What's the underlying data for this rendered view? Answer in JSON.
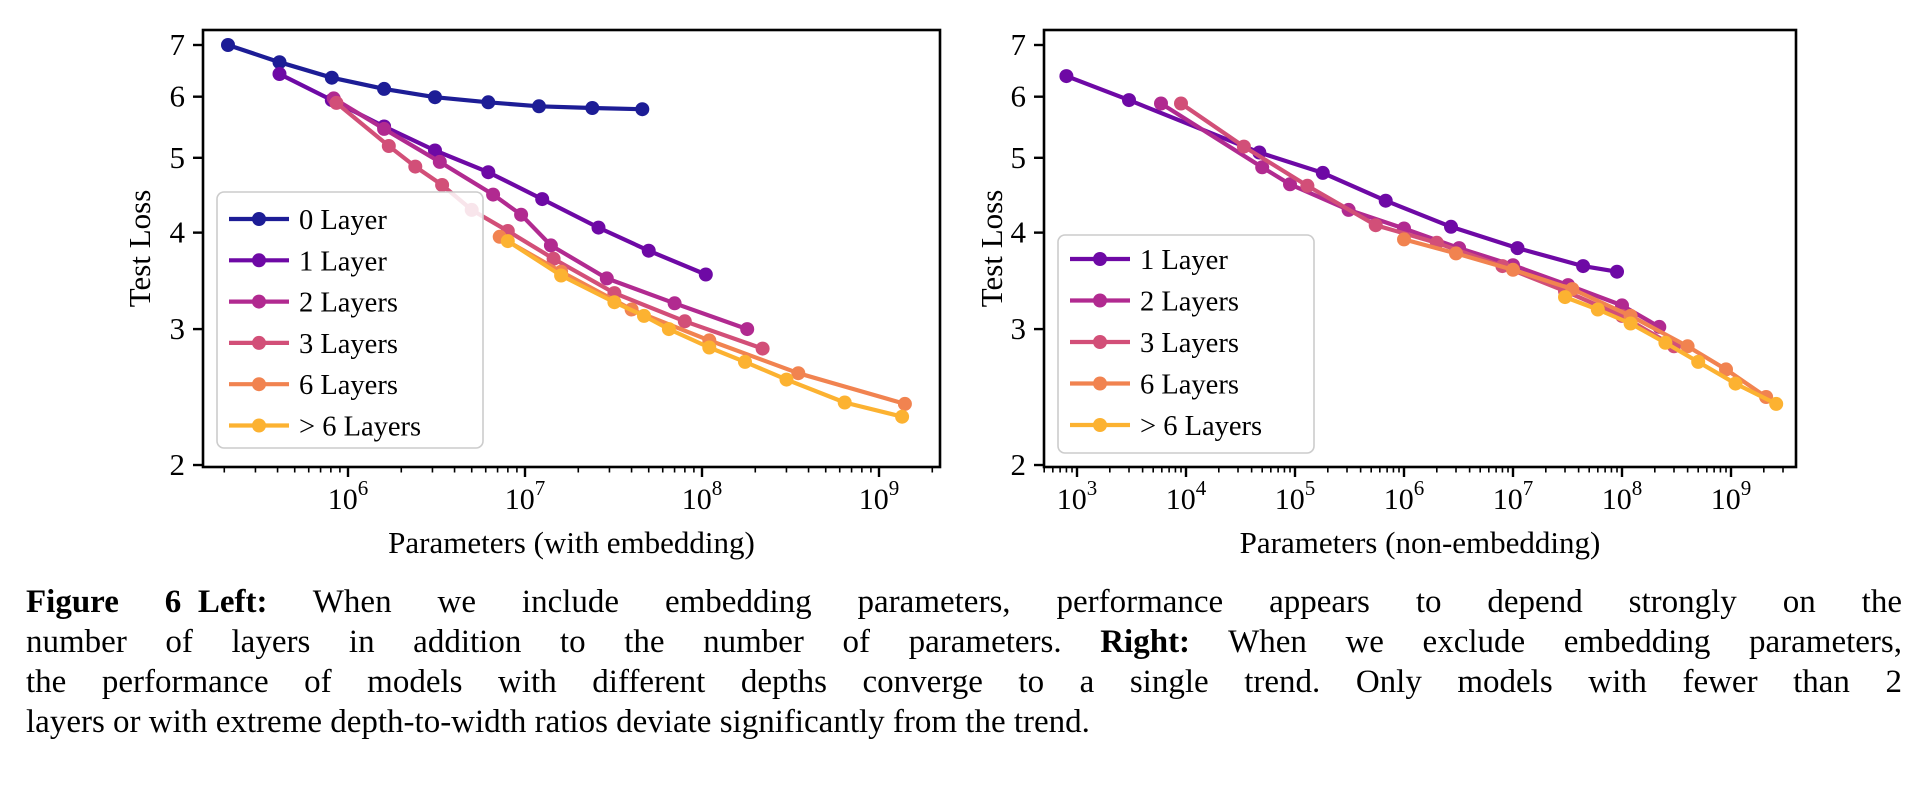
{
  "figure": {
    "caption_lines": [
      [
        {
          "t": "Figure 6",
          "b": true
        },
        {
          "t": " ",
          "b": false
        },
        {
          "t": "Left:",
          "b": true
        },
        {
          "t": " When we include embedding parameters, performance appears to depend strongly on the",
          "b": false
        }
      ],
      [
        {
          "t": "number of layers in addition to the number of parameters. ",
          "b": false
        },
        {
          "t": "Right:",
          "b": true
        },
        {
          "t": " When we exclude embedding parameters,",
          "b": false
        }
      ],
      [
        {
          "t": "the performance of models with different depths converge to a single trend. Only models with fewer than 2",
          "b": false
        }
      ],
      [
        {
          "t": "layers or with extreme depth-to-width ratios deviate significantly from the trend.",
          "b": false
        }
      ]
    ]
  },
  "chart_data": [
    {
      "type": "line",
      "panel": "left",
      "xlabel": "Parameters (with embedding)",
      "ylabel": "Test Loss",
      "xscale": "log",
      "yscale": "log",
      "xlim": [
        150000.0,
        2200000000.0
      ],
      "ylim": [
        2,
        7.3
      ],
      "xticks_exponents": [
        6,
        7,
        8,
        9
      ],
      "yticks": [
        7,
        6,
        5,
        4,
        3,
        2
      ],
      "grid": false,
      "legend_position": "lower left",
      "series": [
        {
          "name": "0 Layer",
          "color": "#1d1d96",
          "x": [
            210000.0,
            410000.0,
            810000.0,
            1600000.0,
            3100000.0,
            6200000.0,
            12000000.0,
            24000000.0,
            46000000.0
          ],
          "y": [
            7.0,
            6.65,
            6.35,
            6.14,
            5.99,
            5.9,
            5.83,
            5.8,
            5.78
          ]
        },
        {
          "name": "1 Layer",
          "color": "#6e09a5",
          "x": [
            410000.0,
            810000.0,
            1600000.0,
            3100000.0,
            6200000.0,
            12500000.0,
            26000000.0,
            50000000.0,
            105000000.0
          ],
          "y": [
            6.42,
            5.94,
            5.49,
            5.11,
            4.79,
            4.42,
            4.06,
            3.79,
            3.53
          ]
        },
        {
          "name": "2 Layers",
          "color": "#b12a90",
          "x": [
            830000.0,
            1600000.0,
            3300000.0,
            6600000.0,
            9500000.0,
            14000000.0,
            29000000.0,
            70000000.0,
            180000000.0
          ],
          "y": [
            5.97,
            5.45,
            4.94,
            4.48,
            4.22,
            3.85,
            3.49,
            3.24,
            3.0
          ]
        },
        {
          "name": "3 Layers",
          "color": "#d24f78",
          "x": [
            860000.0,
            1700000.0,
            2400000.0,
            3400000.0,
            5000000.0,
            8000000.0,
            14500000.0,
            32000000.0,
            80000000.0,
            220000000.0
          ],
          "y": [
            5.89,
            5.18,
            4.87,
            4.61,
            4.28,
            4.02,
            3.7,
            3.34,
            3.07,
            2.83
          ]
        },
        {
          "name": "6 Layers",
          "color": "#f18350",
          "x": [
            7200000.0,
            16000000.0,
            40000000.0,
            110000000.0,
            350000000.0,
            1400000000.0
          ],
          "y": [
            3.95,
            3.56,
            3.18,
            2.9,
            2.63,
            2.4
          ]
        },
        {
          "name": "> 6 Layers",
          "color": "#fcb231",
          "x": [
            8000000.0,
            16000000.0,
            32000000.0,
            47000000.0,
            65000000.0,
            110000000.0,
            175000000.0,
            300000000.0,
            640000000.0,
            1350000000.0
          ],
          "y": [
            3.9,
            3.52,
            3.25,
            3.12,
            3.0,
            2.84,
            2.72,
            2.58,
            2.41,
            2.31
          ]
        }
      ]
    },
    {
      "type": "line",
      "panel": "right",
      "xlabel": "Parameters (non-embedding)",
      "ylabel": "Test Loss",
      "xscale": "log",
      "yscale": "log",
      "xlim": [
        500.0,
        4000000000.0
      ],
      "ylim": [
        2,
        7.3
      ],
      "xticks_exponents": [
        3,
        4,
        5,
        6,
        7,
        8,
        9
      ],
      "yticks": [
        7,
        6,
        5,
        4,
        3,
        2
      ],
      "grid": false,
      "legend_position": "lower left",
      "series": [
        {
          "name": "1 Layer",
          "color": "#6e09a5",
          "x": [
            800.0,
            3000.0,
            47000.0,
            180000.0,
            680000.0,
            2700000.0,
            11000000.0,
            44000000.0,
            90000000.0
          ],
          "y": [
            6.38,
            5.94,
            5.08,
            4.78,
            4.4,
            4.07,
            3.82,
            3.62,
            3.56
          ]
        },
        {
          "name": "2 Layers",
          "color": "#b12a90",
          "x": [
            5900.0,
            50000.0,
            90000.0,
            310000.0,
            1000000.0,
            3200000.0,
            10000000.0,
            32000000.0,
            100000000.0,
            220000000.0
          ],
          "y": [
            5.88,
            4.86,
            4.62,
            4.28,
            4.05,
            3.82,
            3.63,
            3.42,
            3.22,
            3.02
          ]
        },
        {
          "name": "3 Layers",
          "color": "#d24f78",
          "x": [
            9000.0,
            34000.0,
            130000.0,
            550000.0,
            2000000.0,
            8000000.0,
            30000000.0,
            100000000.0,
            300000000.0
          ],
          "y": [
            5.88,
            5.17,
            4.6,
            4.09,
            3.88,
            3.62,
            3.36,
            3.12,
            2.85
          ]
        },
        {
          "name": "6 Layers",
          "color": "#f18350",
          "x": [
            1000000.0,
            3000000.0,
            10000000.0,
            35000000.0,
            120000000.0,
            400000000.0,
            900000000.0,
            2100000000.0
          ],
          "y": [
            3.92,
            3.76,
            3.58,
            3.38,
            3.12,
            2.85,
            2.66,
            2.45
          ]
        },
        {
          "name": "> 6 Layers",
          "color": "#fcb231",
          "x": [
            30000000.0,
            60000000.0,
            120000000.0,
            250000000.0,
            500000000.0,
            1100000000.0,
            2600000000.0
          ],
          "y": [
            3.3,
            3.18,
            3.05,
            2.88,
            2.72,
            2.55,
            2.4
          ]
        }
      ]
    }
  ]
}
